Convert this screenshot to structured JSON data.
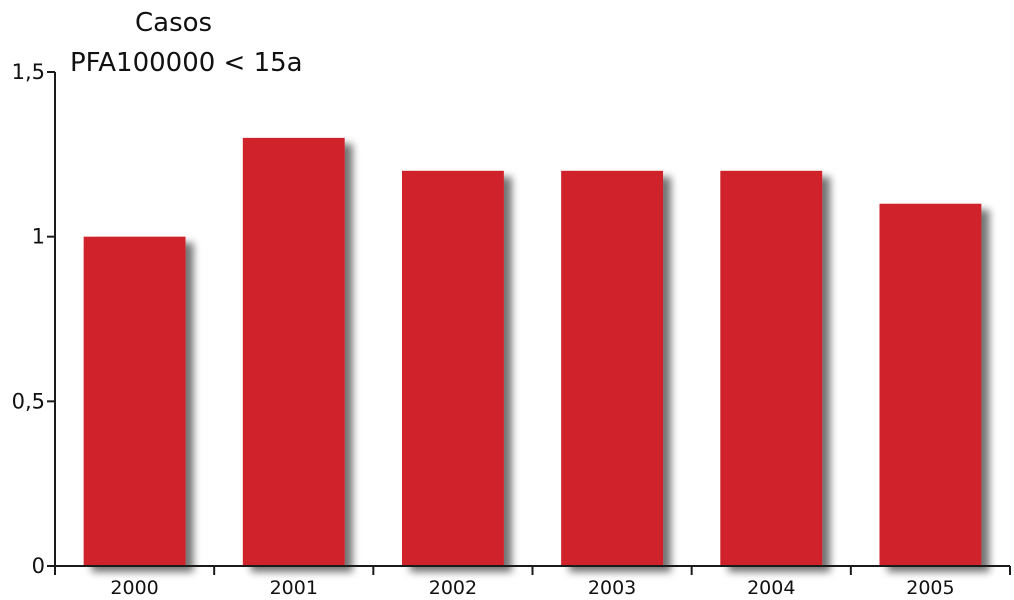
{
  "chart_data": {
    "type": "bar",
    "ylabel_line1": "Casos",
    "ylabel_line2": "PFA100000 < 15a",
    "categories": [
      "2000",
      "2001",
      "2002",
      "2003",
      "2004",
      "2005"
    ],
    "values": [
      1.0,
      1.3,
      1.2,
      1.2,
      1.2,
      1.1
    ],
    "ylim": [
      0,
      1.5
    ],
    "yticks": [
      0,
      0.5,
      1,
      1.5
    ],
    "ytick_labels": [
      "0",
      "0,5",
      "1",
      "1,5"
    ],
    "bar_color": "#D0232A",
    "shadow_color": "#8a8a8a",
    "axis_color": "#1a1a1a",
    "grid": false,
    "legend": "none"
  }
}
